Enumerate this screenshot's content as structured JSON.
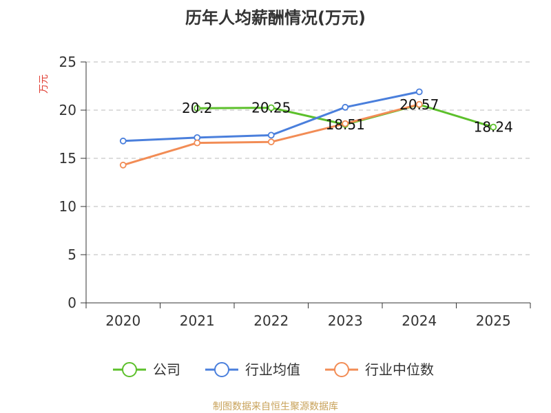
{
  "chart_data": {
    "type": "line",
    "title": "历年人均薪酬情况(万元)",
    "ylabel": "万元",
    "xlabel": "",
    "categories": [
      "2020",
      "2021",
      "2022",
      "2023",
      "2024",
      "2025"
    ],
    "ylim": [
      0,
      25
    ],
    "yticks": [
      0,
      5,
      10,
      15,
      20,
      25
    ],
    "grid": true,
    "legend_position": "bottom",
    "series": [
      {
        "name": "公司",
        "color": "#5cc02b",
        "values": [
          null,
          20.2,
          20.25,
          18.51,
          20.57,
          18.24
        ],
        "labels": [
          "",
          "20.2",
          "20.25",
          "18.51",
          "20.57",
          "18.24"
        ]
      },
      {
        "name": "行业均值",
        "color": "#4a7fdc",
        "values": [
          16.8,
          17.15,
          17.4,
          20.3,
          21.9,
          null
        ]
      },
      {
        "name": "行业中位数",
        "color": "#f28c55",
        "values": [
          14.3,
          16.6,
          16.7,
          18.6,
          20.6,
          null
        ]
      }
    ]
  },
  "footer": {
    "source": "制图数据来自恒生聚源数据库"
  }
}
